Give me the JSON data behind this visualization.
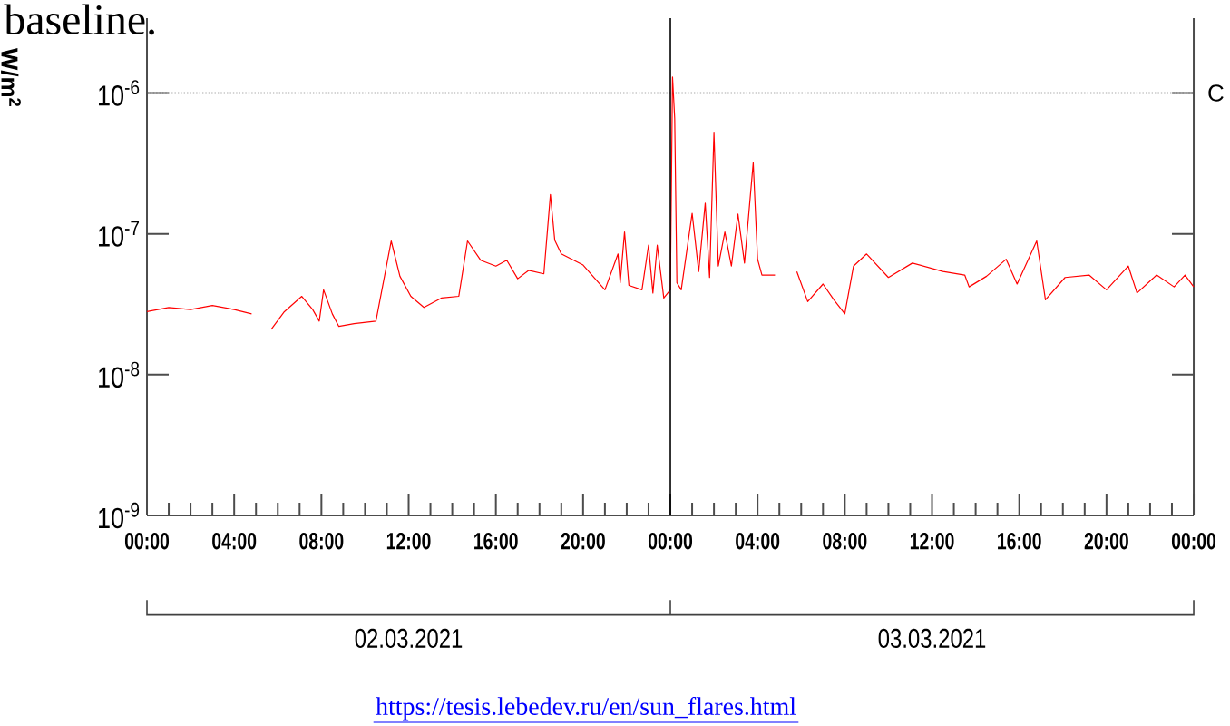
{
  "chart_data": {
    "type": "line",
    "ylabel": "W/m$^{2}$",
    "annotations": [
      "baseline.",
      "02.03.2021",
      "03.03.2021",
      "https://tesis.lebedev.ru/en/sun_flares.html"
    ],
    "log": "y",
    "marker": "none",
    "line_style": "solid",
    "grid": false,
    "xlim": [
      "2021-03-02T00:00",
      "2021-03-04T00:00"
    ],
    "ylim": [
      1e-09,
      3.4e-06
    ],
    "xticks": [
      {
        "value": "2021-03-02T00:00",
        "label": "00:00"
      },
      {
        "value": "2021-03-02T01:00",
        "label": null
      },
      {
        "value": "2021-03-02T02:00",
        "label": null
      },
      {
        "value": "2021-03-02T03:00",
        "label": null
      },
      {
        "value": "2021-03-02T04:00",
        "label": "04:00"
      },
      {
        "value": "2021-03-02T05:00",
        "label": null
      },
      {
        "value": "2021-03-02T06:00",
        "label": null
      },
      {
        "value": "2021-03-02T07:00",
        "label": null
      },
      {
        "value": "2021-03-02T08:00",
        "label": "08:00"
      },
      {
        "value": "2021-03-02T09:00",
        "label": null
      },
      {
        "value": "2021-03-02T10:00",
        "label": null
      },
      {
        "value": "2021-03-02T11:00",
        "label": null
      },
      {
        "value": "2021-03-02T12:00",
        "label": "12:00"
      },
      {
        "value": "2021-03-02T13:00",
        "label": null
      },
      {
        "value": "2021-03-02T14:00",
        "label": null
      },
      {
        "value": "2021-03-02T15:00",
        "label": null
      },
      {
        "value": "2021-03-02T16:00",
        "label": "16:00"
      },
      {
        "value": "2021-03-02T17:00",
        "label": null
      },
      {
        "value": "2021-03-02T18:00",
        "label": null
      },
      {
        "value": "2021-03-02T19:00",
        "label": null
      },
      {
        "value": "2021-03-02T20:00",
        "label": "20:00"
      },
      {
        "value": "2021-03-02T21:00",
        "label": null
      },
      {
        "value": "2021-03-02T22:00",
        "label": null
      },
      {
        "value": "2021-03-02T23:00",
        "label": null
      },
      {
        "value": "2021-03-03T00:00",
        "label": "00:00"
      },
      {
        "value": "2021-03-03T01:00",
        "label": null
      },
      {
        "value": "2021-03-03T02:00",
        "label": null
      },
      {
        "value": "2021-03-03T03:00",
        "label": null
      },
      {
        "value": "2021-03-03T04:00",
        "label": "04:00"
      },
      {
        "value": "2021-03-03T05:00",
        "label": null
      },
      {
        "value": "2021-03-03T06:00",
        "label": null
      },
      {
        "value": "2021-03-03T07:00",
        "label": null
      },
      {
        "value": "2021-03-03T08:00",
        "label": "08:00"
      },
      {
        "value": "2021-03-03T09:00",
        "label": null
      },
      {
        "value": "2021-03-03T10:00",
        "label": null
      },
      {
        "value": "2021-03-03T11:00",
        "label": null
      },
      {
        "value": "2021-03-03T12:00",
        "label": "12:00"
      },
      {
        "value": "2021-03-03T13:00",
        "label": null
      },
      {
        "value": "2021-03-03T14:00",
        "label": null
      },
      {
        "value": "2021-03-03T15:00",
        "label": null
      },
      {
        "value": "2021-03-03T16:00",
        "label": "16:00"
      },
      {
        "value": "2021-03-03T17:00",
        "label": null
      },
      {
        "value": "2021-03-03T18:00",
        "label": null
      },
      {
        "value": "2021-03-03T19:00",
        "label": null
      },
      {
        "value": "2021-03-03T20:00",
        "label": "20:00"
      },
      {
        "value": "2021-03-03T21:00",
        "label": null
      },
      {
        "value": "2021-03-03T22:00",
        "label": null
      },
      {
        "value": "2021-03-03T23:00",
        "label": null
      },
      {
        "value": "2021-03-04T00:00",
        "label": "00:00"
      }
    ],
    "yticks": [
      {
        "value": 1e-09,
        "label": "10$^{-9}$"
      },
      {
        "value": 1e-08,
        "label": "10$^{-8}$"
      },
      {
        "value": 1e-07,
        "label": "10$^{-7}$"
      },
      {
        "value": 1e-06,
        "label": "10$^{-6}$"
      }
    ],
    "ref_lines": [
      {
        "axis": "y",
        "value": 1e-06,
        "label": "C",
        "color": "#555555",
        "line_style": "dotted"
      },
      {
        "axis": "x",
        "value": "2021-03-03T00:00",
        "color": "#000000",
        "line_style": "solid"
      }
    ],
    "series": [
      {
        "color": "#ff0000",
        "x": [
          "2021-03-02T00:00",
          "2021-03-02T01:00",
          "2021-03-02T02:00",
          "2021-03-02T03:00",
          "2021-03-02T04:00",
          "2021-03-02T04:48",
          "2021-03-02T05:12",
          "2021-03-02T05:42",
          "2021-03-02T06:18",
          "2021-03-02T07:06",
          "2021-03-02T07:36",
          "2021-03-02T07:54",
          "2021-03-02T08:06",
          "2021-03-02T08:30",
          "2021-03-02T08:48",
          "2021-03-02T09:30",
          "2021-03-02T10:30",
          "2021-03-02T11:12",
          "2021-03-02T11:36",
          "2021-03-02T12:06",
          "2021-03-02T12:42",
          "2021-03-02T13:30",
          "2021-03-02T14:18",
          "2021-03-02T14:42",
          "2021-03-02T15:18",
          "2021-03-02T16:00",
          "2021-03-02T16:30",
          "2021-03-02T17:00",
          "2021-03-02T17:30",
          "2021-03-02T18:12",
          "2021-03-02T18:30",
          "2021-03-02T18:42",
          "2021-03-02T19:00",
          "2021-03-02T20:00",
          "2021-03-02T21:00",
          "2021-03-02T21:36",
          "2021-03-02T21:42",
          "2021-03-02T21:54",
          "2021-03-02T22:06",
          "2021-03-02T22:42",
          "2021-03-02T23:00",
          "2021-03-02T23:12",
          "2021-03-02T23:24",
          "2021-03-02T23:42",
          "2021-03-03T00:00",
          "2021-03-03T00:06",
          "2021-03-03T00:12",
          "2021-03-03T00:18",
          "2021-03-03T00:30",
          "2021-03-03T01:00",
          "2021-03-03T01:18",
          "2021-03-03T01:36",
          "2021-03-03T01:48",
          "2021-03-03T02:00",
          "2021-03-03T02:12",
          "2021-03-03T02:30",
          "2021-03-03T02:48",
          "2021-03-03T03:06",
          "2021-03-03T03:24",
          "2021-03-03T03:48",
          "2021-03-03T04:00",
          "2021-03-03T04:12",
          "2021-03-03T04:48",
          "2021-03-03T05:18",
          "2021-03-03T05:48",
          "2021-03-03T06:18",
          "2021-03-03T07:00",
          "2021-03-03T07:30",
          "2021-03-03T08:00",
          "2021-03-03T08:24",
          "2021-03-03T09:00",
          "2021-03-03T10:00",
          "2021-03-03T11:06",
          "2021-03-03T12:30",
          "2021-03-03T13:30",
          "2021-03-03T13:42",
          "2021-03-03T14:30",
          "2021-03-03T15:24",
          "2021-03-03T15:54",
          "2021-03-03T16:48",
          "2021-03-03T17:12",
          "2021-03-03T18:06",
          "2021-03-03T19:12",
          "2021-03-03T20:00",
          "2021-03-03T21:00",
          "2021-03-03T21:24",
          "2021-03-03T22:18",
          "2021-03-03T23:06",
          "2021-03-03T23:36",
          "2021-03-04T00:00"
        ],
        "values": [
          2.8e-08,
          3e-08,
          2.9e-08,
          3.1e-08,
          2.9e-08,
          2.7e-08,
          null,
          2.1e-08,
          2.8e-08,
          3.6e-08,
          2.9e-08,
          2.4e-08,
          4e-08,
          2.7e-08,
          2.2e-08,
          2.3e-08,
          2.4e-08,
          8.9e-08,
          5e-08,
          3.6e-08,
          3e-08,
          3.5e-08,
          3.6e-08,
          8.9e-08,
          6.5e-08,
          5.9e-08,
          6.5e-08,
          4.8e-08,
          5.5e-08,
          5.2e-08,
          1.9e-07,
          9e-08,
          7.2e-08,
          6e-08,
          4e-08,
          7.2e-08,
          4.5e-08,
          1.03e-07,
          4.3e-08,
          4e-08,
          8.3e-08,
          3.8e-08,
          8.3e-08,
          3.5e-08,
          4e-08,
          1.3e-06,
          6.6e-07,
          4.5e-08,
          4e-08,
          1.4e-07,
          5.4e-08,
          1.65e-07,
          4.9e-08,
          5.2e-07,
          5.9e-08,
          1.03e-07,
          5.9e-08,
          1.38e-07,
          6.2e-08,
          3.2e-07,
          6.6e-08,
          5.1e-08,
          5.1e-08,
          null,
          5.4e-08,
          3.3e-08,
          4.4e-08,
          3.4e-08,
          2.7e-08,
          5.9e-08,
          7.2e-08,
          4.9e-08,
          6.2e-08,
          5.4e-08,
          5.1e-08,
          4.2e-08,
          5e-08,
          6.6e-08,
          4.4e-08,
          8.9e-08,
          3.4e-08,
          4.9e-08,
          5.1e-08,
          4e-08,
          5.9e-08,
          3.8e-08,
          5.1e-08,
          4.2e-08,
          5.1e-08,
          4.2e-08
        ]
      }
    ]
  }
}
